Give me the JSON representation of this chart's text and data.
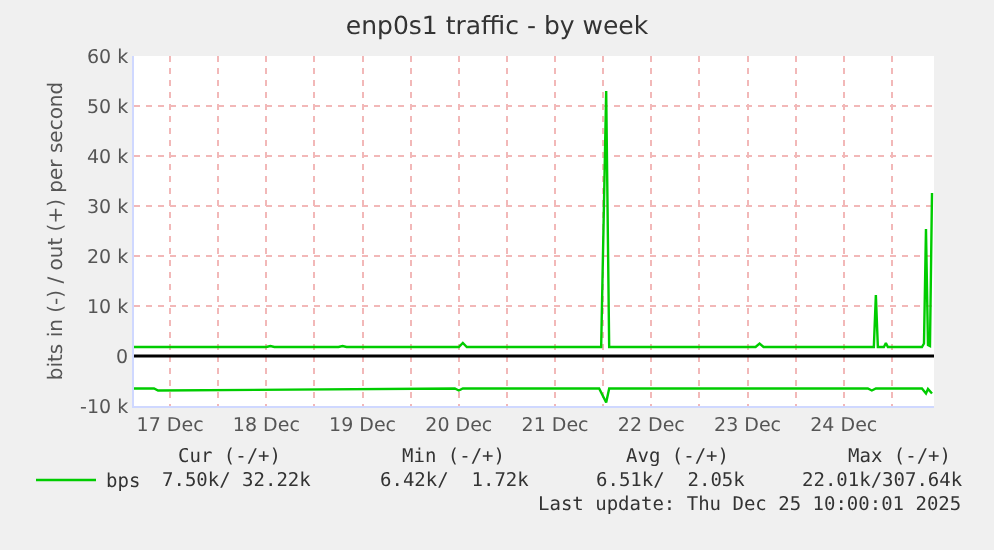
{
  "chart_data": {
    "type": "line",
    "title": "enp0s1 traffic - by week",
    "ylabel": "bits in (-) / out (+) per second",
    "xlim": [
      "2025-12-17T03:00",
      "2025-12-25T10:30"
    ],
    "xticks": [
      {
        "value": "2025-12-17T12:00",
        "label": "17 Dec"
      },
      {
        "value": "2025-12-18T00:00",
        "label": null
      },
      {
        "value": "2025-12-18T12:00",
        "label": "18 Dec"
      },
      {
        "value": "2025-12-19T00:00",
        "label": null
      },
      {
        "value": "2025-12-19T12:00",
        "label": "19 Dec"
      },
      {
        "value": "2025-12-20T00:00",
        "label": null
      },
      {
        "value": "2025-12-20T12:00",
        "label": "20 Dec"
      },
      {
        "value": "2025-12-21T00:00",
        "label": null
      },
      {
        "value": "2025-12-21T12:00",
        "label": "21 Dec"
      },
      {
        "value": "2025-12-22T00:00",
        "label": null
      },
      {
        "value": "2025-12-22T12:00",
        "label": "22 Dec"
      },
      {
        "value": "2025-12-23T00:00",
        "label": null
      },
      {
        "value": "2025-12-23T12:00",
        "label": "23 Dec"
      },
      {
        "value": "2025-12-24T00:00",
        "label": null
      },
      {
        "value": "2025-12-24T12:00",
        "label": "24 Dec"
      },
      {
        "value": "2025-12-25T00:00",
        "label": null
      }
    ],
    "ylim": [
      -10000,
      60000
    ],
    "yticks": [
      {
        "value": -10000,
        "label": "-10 k"
      },
      0,
      {
        "value": 10000,
        "label": "10 k"
      },
      {
        "value": 20000,
        "label": "20 k"
      },
      {
        "value": 30000,
        "label": "30 k"
      },
      {
        "value": 40000,
        "label": "40 k"
      },
      {
        "value": 50000,
        "label": "50 k"
      },
      {
        "value": 60000,
        "label": "60 k"
      }
    ],
    "grid": true,
    "legend": "bottom left",
    "marker": "none",
    "line_style": "solid",
    "ref_lines": [
      {
        "axis": "y",
        "value": 0,
        "color": "#000000"
      }
    ],
    "series": [
      {
        "name": "bps",
        "color": "#00cc00",
        "x": [
          "2025-12-17T03:00",
          "2025-12-18T12:00",
          "2025-12-18T13:00",
          "2025-12-18T14:00",
          "2025-12-19T06:00",
          "2025-12-19T07:00",
          "2025-12-19T08:00",
          "2025-12-20T12:00",
          "2025-12-20T13:00",
          "2025-12-20T14:00",
          "2025-12-21T23:30",
          "2025-12-22T00:45",
          "2025-12-22T01:30",
          "2025-12-23T14:00",
          "2025-12-23T15:00",
          "2025-12-23T16:00",
          "2025-12-24T19:30",
          "2025-12-24T20:00",
          "2025-12-24T20:30",
          "2025-12-24T22:00",
          "2025-12-24T22:30",
          "2025-12-24T23:00",
          "2025-12-25T07:30",
          "2025-12-25T08:00",
          "2025-12-25T08:30",
          "2025-12-25T09:00",
          "2025-12-25T09:30",
          "2025-12-25T10:00"
        ],
        "values": [
          1800,
          1800,
          2000,
          1800,
          1800,
          2000,
          1800,
          1800,
          2600,
          1800,
          1800,
          53000,
          1800,
          1800,
          2500,
          1800,
          1800,
          12200,
          1800,
          1800,
          2600,
          1800,
          1800,
          2500,
          25400,
          2200,
          2000,
          32600
        ]
      },
      {
        "color": "#00cc00",
        "x": [
          "2025-12-17T03:00",
          "2025-12-17T08:00",
          "2025-12-17T09:00",
          "2025-12-20T11:00",
          "2025-12-20T12:00",
          "2025-12-20T13:00",
          "2025-12-21T23:00",
          "2025-12-22T00:45",
          "2025-12-22T01:30",
          "2025-12-24T18:00",
          "2025-12-24T19:00",
          "2025-12-24T20:00",
          "2025-12-25T07:30",
          "2025-12-25T08:30",
          "2025-12-25T09:00",
          "2025-12-25T10:00"
        ],
        "values": [
          -6500,
          -6500,
          -6900,
          -6500,
          -6900,
          -6500,
          -6500,
          -9300,
          -6500,
          -6500,
          -6900,
          -6500,
          -6500,
          -7500,
          -6600,
          -7500
        ]
      }
    ],
    "annotations": [
      "Cur (-/+)",
      "Min (-/+)",
      "Avg (-/+)",
      "Max (-/+)",
      "7.50k/ 32.22k",
      "6.42k/  1.72k",
      "6.51k/  2.05k",
      "22.01k/307.64k",
      "Last update: Thu Dec 25 10:00:01 2025"
    ]
  }
}
